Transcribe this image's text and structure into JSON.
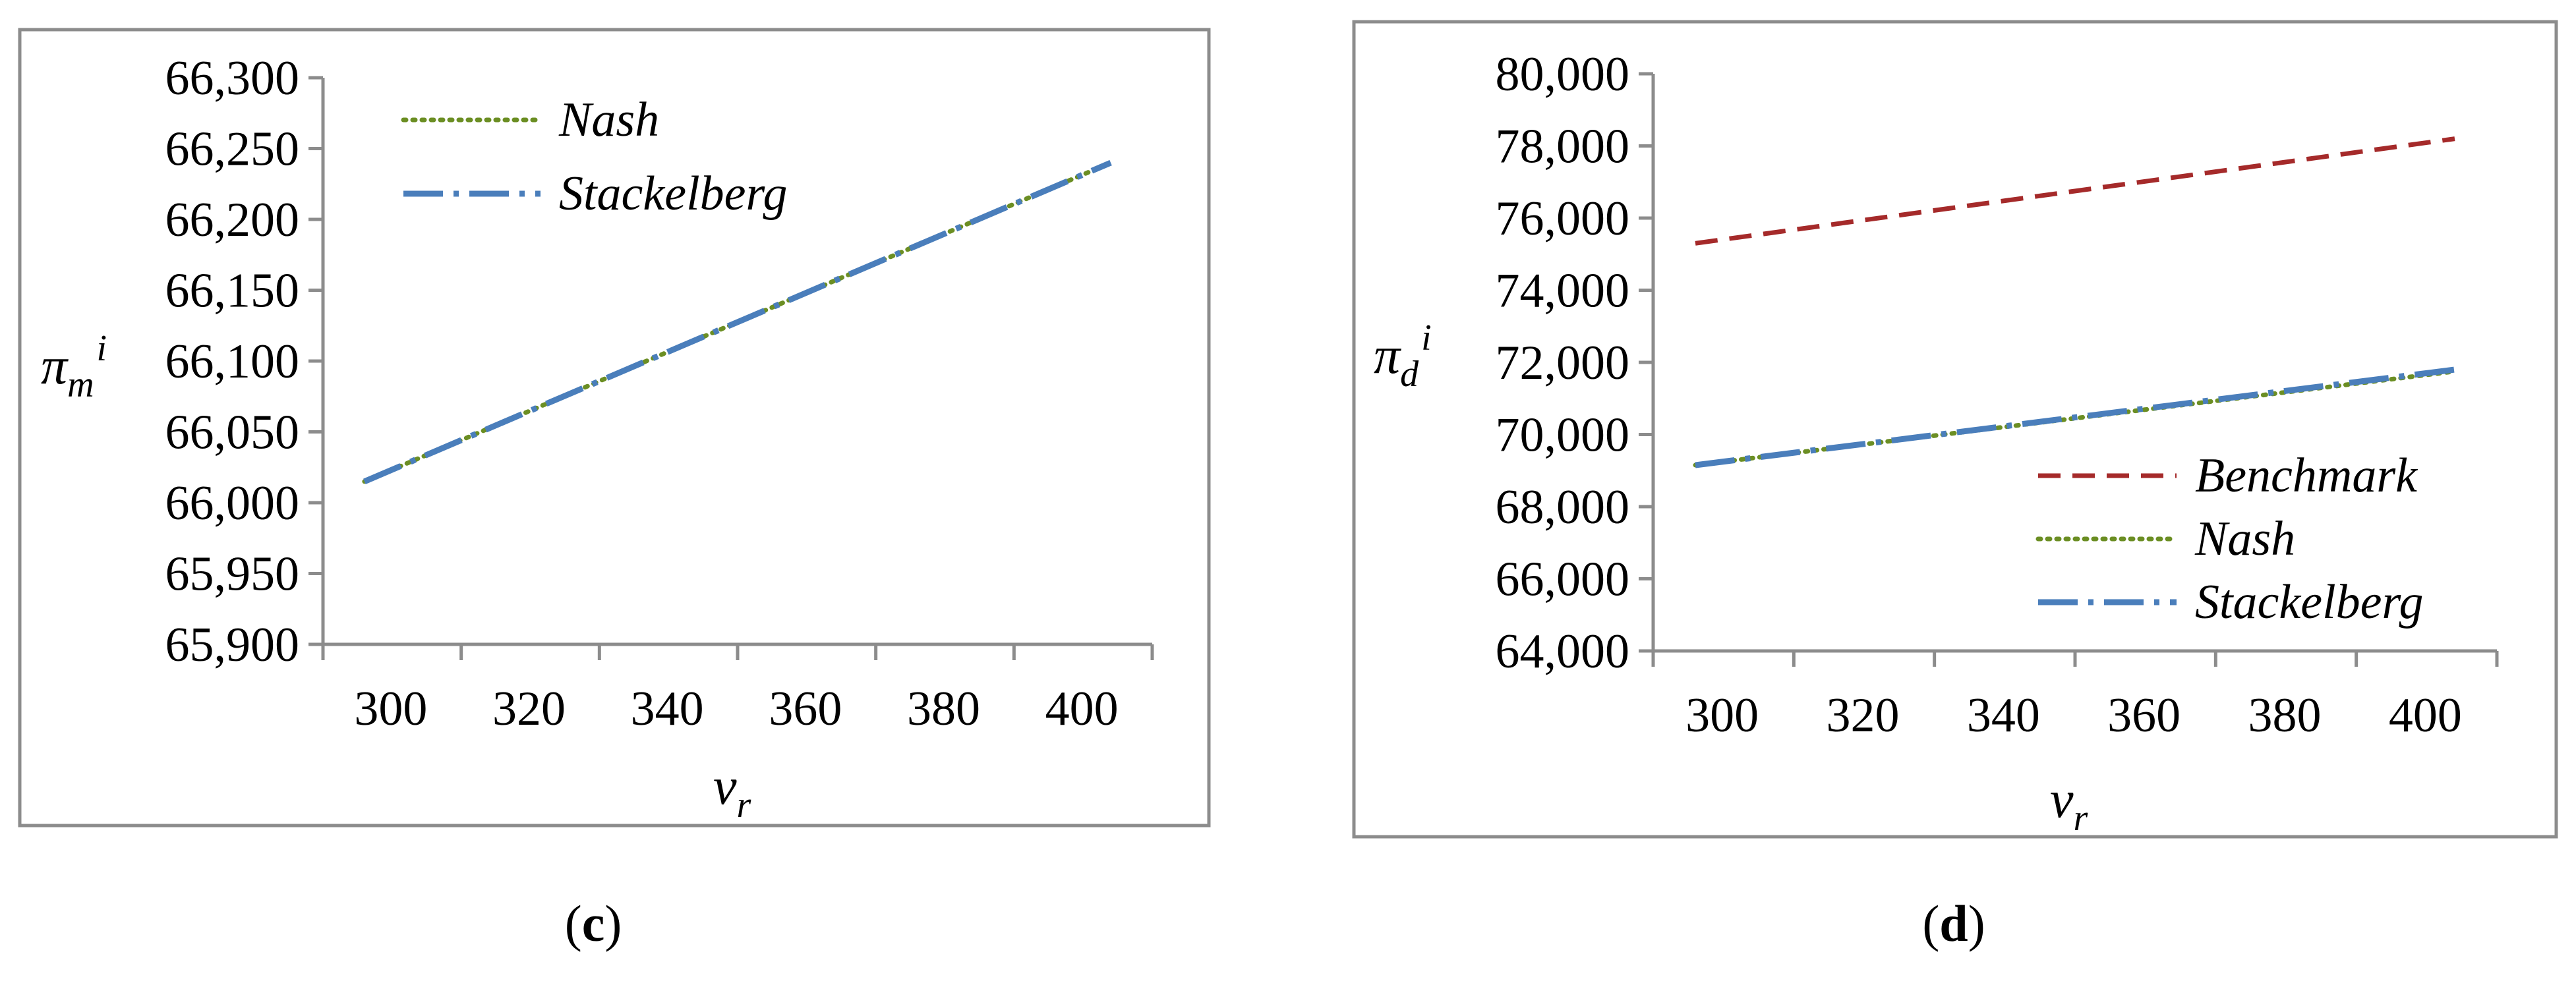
{
  "chart_data": [
    {
      "type": "line",
      "panel_label": "c",
      "ylabel": {
        "main": "π",
        "sub": "m",
        "sup": "i"
      },
      "xlabel": {
        "main": "v",
        "sub": "r"
      },
      "xlim": [
        300,
        400
      ],
      "ylim": [
        65900,
        66300
      ],
      "x_ticks": [
        "300",
        "320",
        "340",
        "360",
        "380",
        "400"
      ],
      "y_ticks": [
        "65,900",
        "65,950",
        "66,000",
        "66,050",
        "66,100",
        "66,150",
        "66,200",
        "66,250",
        "66,300"
      ],
      "legend_position": "top-left",
      "series": [
        {
          "name": "Nash",
          "style": "dotted",
          "color": "#6b8e23",
          "x": [
            305,
            395
          ],
          "y": [
            66015,
            66240
          ]
        },
        {
          "name": "Stackelberg",
          "style": "dash-dot",
          "color": "#4a7ebb",
          "x": [
            305,
            395
          ],
          "y": [
            66015,
            66240
          ]
        }
      ]
    },
    {
      "type": "line",
      "panel_label": "d",
      "ylabel": {
        "main": "π",
        "sub": "d",
        "sup": "i"
      },
      "xlabel": {
        "main": "v",
        "sub": "r"
      },
      "xlim": [
        300,
        400
      ],
      "ylim": [
        64000,
        80000
      ],
      "x_ticks": [
        "300",
        "320",
        "340",
        "360",
        "380",
        "400"
      ],
      "y_ticks": [
        "64,000",
        "66,000",
        "68,000",
        "70,000",
        "72,000",
        "74,000",
        "76,000",
        "78,000",
        "80,000"
      ],
      "legend_position": "bottom-right",
      "series": [
        {
          "name": "Benchmark",
          "style": "dashed",
          "color": "#a52a2a",
          "x": [
            305,
            395
          ],
          "y": [
            75300,
            78200
          ]
        },
        {
          "name": "Nash",
          "style": "dotted",
          "color": "#6b8e23",
          "x": [
            305,
            395
          ],
          "y": [
            69150,
            71750
          ]
        },
        {
          "name": "Stackelberg",
          "style": "dash-dot",
          "color": "#4a7ebb",
          "x": [
            305,
            395
          ],
          "y": [
            69150,
            71800
          ]
        }
      ]
    }
  ]
}
